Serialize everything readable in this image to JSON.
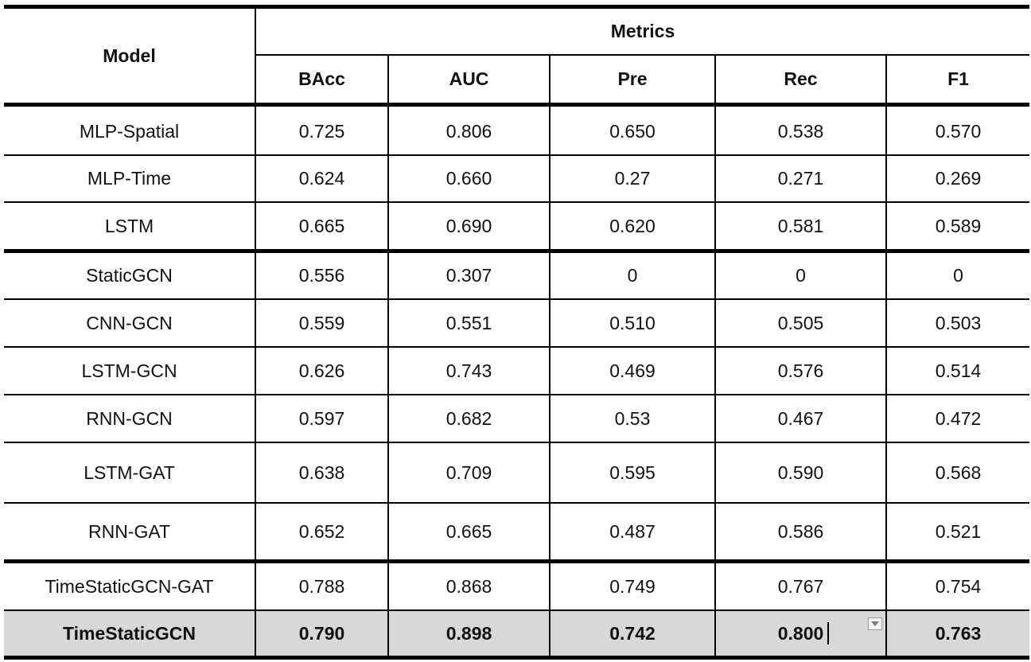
{
  "table": {
    "header_model": "Model",
    "header_metrics": "Metrics",
    "columns": [
      "BAcc",
      "AUC",
      "Pre",
      "Rec",
      "F1"
    ],
    "rows": [
      {
        "model": "MLP-Spatial",
        "values": [
          "0.725",
          "0.806",
          "0.650",
          "0.538",
          "0.570"
        ]
      },
      {
        "model": "MLP-Time",
        "values": [
          "0.624",
          "0.660",
          "0.27",
          "0.271",
          "0.269"
        ]
      },
      {
        "model": "LSTM",
        "values": [
          "0.665",
          "0.690",
          "0.620",
          "0.581",
          "0.589"
        ]
      },
      {
        "model": "StaticGCN",
        "values": [
          "0.556",
          "0.307",
          "0",
          "0",
          "0"
        ]
      },
      {
        "model": "CNN-GCN",
        "values": [
          "0.559",
          "0.551",
          "0.510",
          "0.505",
          "0.503"
        ]
      },
      {
        "model": "LSTM-GCN",
        "values": [
          "0.626",
          "0.743",
          "0.469",
          "0.576",
          "0.514"
        ]
      },
      {
        "model": "RNN-GCN",
        "values": [
          "0.597",
          "0.682",
          "0.53",
          "0.467",
          "0.472"
        ]
      },
      {
        "model": "LSTM-GAT",
        "values": [
          "0.638",
          "0.709",
          "0.595",
          "0.590",
          "0.568"
        ]
      },
      {
        "model": "RNN-GAT",
        "values": [
          "0.652",
          "0.665",
          "0.487",
          "0.586",
          "0.521"
        ]
      },
      {
        "model": "TimeStaticGCN-GAT",
        "values": [
          "0.788",
          "0.868",
          "0.749",
          "0.767",
          "0.754"
        ]
      },
      {
        "model": "TimeStaticGCN",
        "values": [
          "0.790",
          "0.898",
          "0.742",
          "0.800",
          "0.763"
        ]
      }
    ],
    "highlight_color": "#d8d8d8"
  },
  "icons": {
    "cell_dropdown": "chevron-down-icon",
    "text_cursor": "text-cursor"
  }
}
